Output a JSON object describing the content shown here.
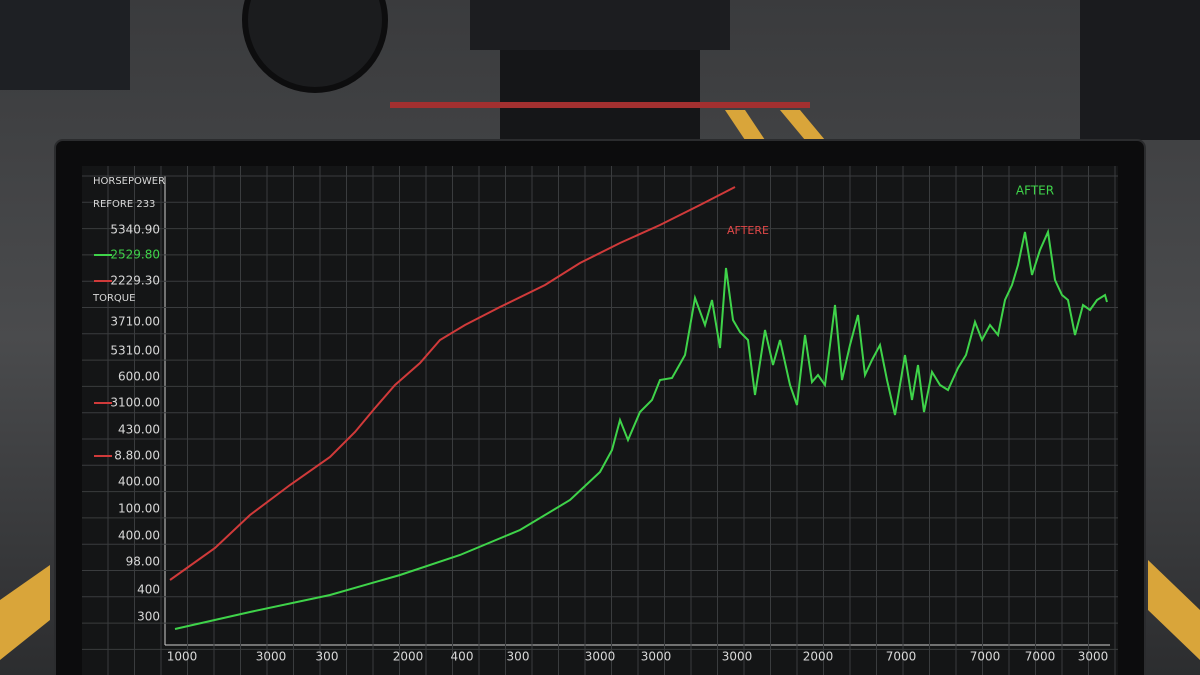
{
  "screen": {
    "left_labels": [
      "HORSEPOWER",
      "REFORE 233",
      "5340.90",
      "2529.80",
      "2229.30",
      "TORQUE",
      "3710.00",
      "5310.00",
      "600.00",
      "3100.00",
      "430.00",
      "8.80.00",
      "400.00",
      "100.00",
      "400.00",
      "98.00",
      "400",
      "300"
    ],
    "x_labels": [
      "1000",
      "3000",
      "300",
      "2000",
      "400",
      "300",
      "3000",
      "3000",
      "3000",
      "2000",
      "7000",
      "7000",
      "7000",
      "3000"
    ],
    "annotations": {
      "red": "AFTERE",
      "green": "AFTER"
    }
  }
}
